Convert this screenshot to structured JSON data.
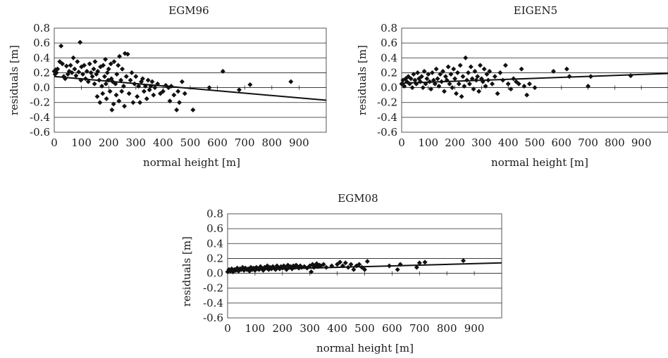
{
  "figure_layout": "three-panels",
  "chart_data": [
    {
      "type": "scatter",
      "title": "EGM96",
      "xlabel": "normal height [m]",
      "ylabel": "residuals [m]",
      "xlim": [
        0,
        1000
      ],
      "ylim": [
        -0.6,
        0.8
      ],
      "x_ticks": [
        "0",
        "100",
        "200",
        "300",
        "400",
        "500",
        "600",
        "700",
        "800",
        "900"
      ],
      "y_ticks": [
        "-0.6",
        "-0.4",
        "-0.2",
        "0.0",
        "0.2",
        "0.4",
        "0.6",
        "0.8"
      ],
      "grid": "horizontal",
      "marker": "diamond",
      "points": [
        [
          0,
          0.22
        ],
        [
          3,
          0.18
        ],
        [
          5,
          0.24
        ],
        [
          8,
          0.2
        ],
        [
          12,
          0.25
        ],
        [
          20,
          0.35
        ],
        [
          25,
          0.56
        ],
        [
          30,
          0.32
        ],
        [
          35,
          0.15
        ],
        [
          40,
          0.12
        ],
        [
          45,
          0.29
        ],
        [
          50,
          0.18
        ],
        [
          55,
          0.22
        ],
        [
          60,
          0.3
        ],
        [
          65,
          0.2
        ],
        [
          70,
          0.4
        ],
        [
          75,
          0.25
        ],
        [
          80,
          0.16
        ],
        [
          85,
          0.35
        ],
        [
          90,
          0.21
        ],
        [
          95,
          0.61
        ],
        [
          98,
          0.1
        ],
        [
          100,
          0.28
        ],
        [
          105,
          0.18
        ],
        [
          110,
          0.3
        ],
        [
          115,
          0.12
        ],
        [
          120,
          0.22
        ],
        [
          125,
          0.08
        ],
        [
          130,
          0.32
        ],
        [
          135,
          0.2
        ],
        [
          140,
          0.15
        ],
        [
          145,
          0.25
        ],
        [
          148,
          0.05
        ],
        [
          150,
          0.35
        ],
        [
          155,
          0.18
        ],
        [
          158,
          -0.12
        ],
        [
          160,
          0.22
        ],
        [
          165,
          0.1
        ],
        [
          168,
          -0.2
        ],
        [
          170,
          0.28
        ],
        [
          175,
          0.02
        ],
        [
          178,
          -0.08
        ],
        [
          180,
          0.3
        ],
        [
          185,
          0.15
        ],
        [
          188,
          0.38
        ],
        [
          190,
          0.05
        ],
        [
          192,
          -0.15
        ],
        [
          195,
          0.2
        ],
        [
          198,
          0.1
        ],
        [
          200,
          0.25
        ],
        [
          205,
          -0.05
        ],
        [
          208,
          0.32
        ],
        [
          210,
          0.12
        ],
        [
          212,
          -0.3
        ],
        [
          215,
          0.08
        ],
        [
          218,
          -0.22
        ],
        [
          220,
          0.35
        ],
        [
          225,
          0.05
        ],
        [
          228,
          -0.1
        ],
        [
          230,
          0.18
        ],
        [
          235,
          0.3
        ],
        [
          238,
          -0.18
        ],
        [
          240,
          0.42
        ],
        [
          245,
          0.1
        ],
        [
          248,
          -0.05
        ],
        [
          250,
          0.25
        ],
        [
          255,
          0.02
        ],
        [
          258,
          -0.25
        ],
        [
          260,
          0.46
        ],
        [
          265,
          0.15
        ],
        [
          270,
          0.45
        ],
        [
          275,
          -0.08
        ],
        [
          280,
          0.1
        ],
        [
          285,
          0.2
        ],
        [
          290,
          -0.2
        ],
        [
          295,
          0.05
        ],
        [
          300,
          0.15
        ],
        [
          305,
          -0.12
        ],
        [
          310,
          0.02
        ],
        [
          315,
          -0.2
        ],
        [
          320,
          0.08
        ],
        [
          325,
          0.12
        ],
        [
          330,
          -0.05
        ],
        [
          335,
          0.02
        ],
        [
          340,
          -0.15
        ],
        [
          345,
          0.1
        ],
        [
          350,
          -0.03
        ],
        [
          355,
          0.02
        ],
        [
          360,
          0.08
        ],
        [
          365,
          -0.1
        ],
        [
          370,
          0.0
        ],
        [
          380,
          0.05
        ],
        [
          390,
          -0.08
        ],
        [
          400,
          -0.05
        ],
        [
          410,
          0.03
        ],
        [
          420,
          0.0
        ],
        [
          425,
          -0.18
        ],
        [
          430,
          0.02
        ],
        [
          440,
          -0.1
        ],
        [
          450,
          -0.3
        ],
        [
          455,
          -0.05
        ],
        [
          460,
          -0.2
        ],
        [
          470,
          0.08
        ],
        [
          480,
          -0.08
        ],
        [
          510,
          -0.3
        ],
        [
          570,
          0.0
        ],
        [
          620,
          0.22
        ],
        [
          680,
          -0.03
        ],
        [
          720,
          0.04
        ],
        [
          870,
          0.08
        ]
      ],
      "trendline": {
        "x": [
          0,
          1000
        ],
        "y": [
          0.15,
          -0.17
        ]
      }
    },
    {
      "type": "scatter",
      "title": "EIGEN5",
      "xlabel": "normal height [m]",
      "ylabel": "residuals [m]",
      "xlim": [
        0,
        1000
      ],
      "ylim": [
        -0.6,
        0.8
      ],
      "x_ticks": [
        "0",
        "100",
        "200",
        "300",
        "400",
        "500",
        "600",
        "700",
        "800",
        "900"
      ],
      "y_ticks": [
        "-0.6",
        "-0.4",
        "-0.2",
        "0.0",
        "0.2",
        "0.4",
        "0.6",
        "0.8"
      ],
      "grid": "horizontal",
      "marker": "diamond",
      "points": [
        [
          0,
          0.05
        ],
        [
          5,
          0.1
        ],
        [
          10,
          0.02
        ],
        [
          15,
          0.12
        ],
        [
          20,
          0.08
        ],
        [
          25,
          0.15
        ],
        [
          30,
          0.05
        ],
        [
          35,
          0.12
        ],
        [
          40,
          0.0
        ],
        [
          45,
          0.18
        ],
        [
          50,
          0.1
        ],
        [
          55,
          0.05
        ],
        [
          60,
          0.2
        ],
        [
          65,
          0.12
        ],
        [
          70,
          0.08
        ],
        [
          75,
          0.15
        ],
        [
          80,
          0.0
        ],
        [
          85,
          0.22
        ],
        [
          90,
          0.05
        ],
        [
          95,
          0.12
        ],
        [
          100,
          0.18
        ],
        [
          105,
          0.08
        ],
        [
          110,
          -0.02
        ],
        [
          115,
          0.2
        ],
        [
          120,
          0.1
        ],
        [
          125,
          0.05
        ],
        [
          130,
          0.25
        ],
        [
          135,
          0.12
        ],
        [
          140,
          0.02
        ],
        [
          145,
          0.18
        ],
        [
          150,
          0.08
        ],
        [
          155,
          0.22
        ],
        [
          160,
          -0.05
        ],
        [
          165,
          0.15
        ],
        [
          170,
          0.1
        ],
        [
          175,
          0.28
        ],
        [
          180,
          0.05
        ],
        [
          185,
          0.18
        ],
        [
          190,
          0.0
        ],
        [
          195,
          0.25
        ],
        [
          200,
          0.12
        ],
        [
          205,
          -0.08
        ],
        [
          210,
          0.2
        ],
        [
          215,
          0.05
        ],
        [
          220,
          0.3
        ],
        [
          225,
          -0.12
        ],
        [
          230,
          0.15
        ],
        [
          235,
          0.02
        ],
        [
          240,
          0.4
        ],
        [
          245,
          0.1
        ],
        [
          250,
          0.2
        ],
        [
          255,
          0.05
        ],
        [
          260,
          0.28
        ],
        [
          265,
          0.12
        ],
        [
          270,
          -0.02
        ],
        [
          275,
          0.22
        ],
        [
          280,
          0.1
        ],
        [
          285,
          0.15
        ],
        [
          290,
          -0.05
        ],
        [
          295,
          0.3
        ],
        [
          300,
          0.12
        ],
        [
          305,
          0.08
        ],
        [
          310,
          0.25
        ],
        [
          315,
          0.02
        ],
        [
          320,
          0.18
        ],
        [
          325,
          0.1
        ],
        [
          330,
          0.22
        ],
        [
          340,
          0.05
        ],
        [
          350,
          0.15
        ],
        [
          360,
          -0.08
        ],
        [
          370,
          0.2
        ],
        [
          380,
          0.1
        ],
        [
          390,
          0.3
        ],
        [
          400,
          0.05
        ],
        [
          410,
          -0.02
        ],
        [
          420,
          0.12
        ],
        [
          430,
          0.08
        ],
        [
          440,
          0.05
        ],
        [
          450,
          0.25
        ],
        [
          460,
          0.02
        ],
        [
          470,
          -0.1
        ],
        [
          480,
          0.05
        ],
        [
          500,
          0.0
        ],
        [
          570,
          0.22
        ],
        [
          620,
          0.25
        ],
        [
          630,
          0.15
        ],
        [
          700,
          0.02
        ],
        [
          710,
          0.15
        ],
        [
          860,
          0.16
        ]
      ],
      "trendline": {
        "x": [
          0,
          1000
        ],
        "y": [
          0.06,
          0.19
        ]
      }
    },
    {
      "type": "scatter",
      "title": "EGM08",
      "xlabel": "normal height [m]",
      "ylabel": "residuals [m]",
      "xlim": [
        0,
        1000
      ],
      "ylim": [
        -0.6,
        0.8
      ],
      "x_ticks": [
        "0",
        "100",
        "200",
        "300",
        "400",
        "500",
        "600",
        "700",
        "800",
        "900"
      ],
      "y_ticks": [
        "-0.6",
        "-0.4",
        "-0.2",
        "0.0",
        "0.2",
        "0.4",
        "0.6",
        "0.8"
      ],
      "grid": "horizontal",
      "marker": "diamond",
      "points": [
        [
          0,
          0.02
        ],
        [
          5,
          0.05
        ],
        [
          10,
          0.03
        ],
        [
          15,
          0.06
        ],
        [
          20,
          0.02
        ],
        [
          25,
          0.05
        ],
        [
          30,
          0.04
        ],
        [
          35,
          0.07
        ],
        [
          40,
          0.03
        ],
        [
          45,
          0.06
        ],
        [
          50,
          0.05
        ],
        [
          55,
          0.08
        ],
        [
          60,
          0.04
        ],
        [
          65,
          0.07
        ],
        [
          70,
          0.05
        ],
        [
          75,
          0.06
        ],
        [
          80,
          0.03
        ],
        [
          85,
          0.08
        ],
        [
          90,
          0.05
        ],
        [
          95,
          0.07
        ],
        [
          100,
          0.04
        ],
        [
          105,
          0.08
        ],
        [
          110,
          0.06
        ],
        [
          115,
          0.05
        ],
        [
          120,
          0.09
        ],
        [
          125,
          0.06
        ],
        [
          130,
          0.04
        ],
        [
          135,
          0.08
        ],
        [
          140,
          0.07
        ],
        [
          145,
          0.1
        ],
        [
          150,
          0.05
        ],
        [
          155,
          0.08
        ],
        [
          160,
          0.06
        ],
        [
          165,
          0.09
        ],
        [
          170,
          0.07
        ],
        [
          175,
          0.05
        ],
        [
          180,
          0.1
        ],
        [
          185,
          0.08
        ],
        [
          190,
          0.06
        ],
        [
          195,
          0.09
        ],
        [
          200,
          0.07
        ],
        [
          205,
          0.1
        ],
        [
          210,
          0.08
        ],
        [
          215,
          0.05
        ],
        [
          220,
          0.11
        ],
        [
          225,
          0.08
        ],
        [
          230,
          0.09
        ],
        [
          235,
          0.06
        ],
        [
          240,
          0.1
        ],
        [
          245,
          0.08
        ],
        [
          250,
          0.11
        ],
        [
          255,
          0.09
        ],
        [
          260,
          0.07
        ],
        [
          265,
          0.1
        ],
        [
          270,
          0.08
        ],
        [
          280,
          0.09
        ],
        [
          290,
          0.07
        ],
        [
          300,
          0.1
        ],
        [
          305,
          0.02
        ],
        [
          310,
          0.12
        ],
        [
          315,
          0.08
        ],
        [
          320,
          0.1
        ],
        [
          325,
          0.13
        ],
        [
          330,
          0.09
        ],
        [
          335,
          0.11
        ],
        [
          340,
          0.1
        ],
        [
          350,
          0.12
        ],
        [
          360,
          0.08
        ],
        [
          380,
          0.1
        ],
        [
          400,
          0.12
        ],
        [
          410,
          0.15
        ],
        [
          420,
          0.1
        ],
        [
          430,
          0.14
        ],
        [
          440,
          0.08
        ],
        [
          450,
          0.12
        ],
        [
          460,
          0.05
        ],
        [
          470,
          0.1
        ],
        [
          480,
          0.12
        ],
        [
          490,
          0.08
        ],
        [
          500,
          0.05
        ],
        [
          510,
          0.16
        ],
        [
          590,
          0.1
        ],
        [
          620,
          0.05
        ],
        [
          630,
          0.12
        ],
        [
          690,
          0.08
        ],
        [
          700,
          0.14
        ],
        [
          720,
          0.15
        ],
        [
          860,
          0.17
        ]
      ],
      "trendline": {
        "x": [
          0,
          1000
        ],
        "y": [
          0.04,
          0.14
        ]
      }
    }
  ]
}
